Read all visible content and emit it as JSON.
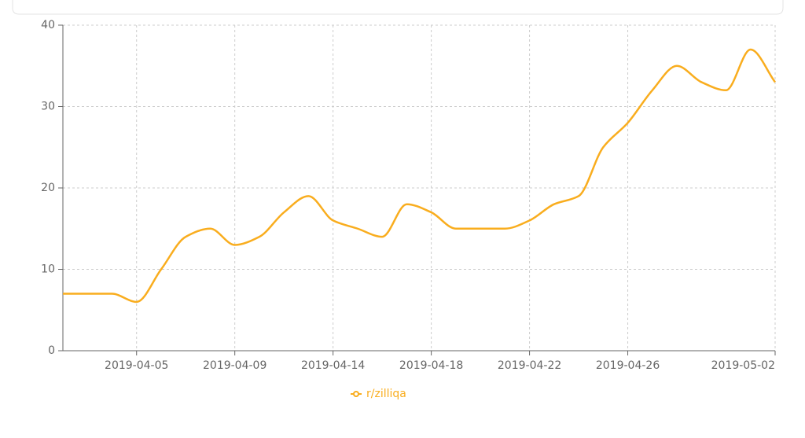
{
  "chart_data": {
    "type": "line",
    "categories": [
      null,
      null,
      null,
      "2019-04-05",
      null,
      null,
      null,
      "2019-04-09",
      null,
      null,
      null,
      "2019-04-14",
      null,
      null,
      null,
      "2019-04-18",
      null,
      null,
      null,
      "2019-04-22",
      null,
      null,
      null,
      "2019-04-26",
      null,
      null,
      null,
      null,
      null,
      "2019-05-02"
    ],
    "series": [
      {
        "name": "r/zilliqa",
        "color": "#f9ad1e",
        "values": [
          7,
          7,
          7,
          6,
          10,
          14,
          15,
          13,
          14,
          17,
          19,
          16,
          15,
          14,
          18,
          17,
          15,
          15,
          15,
          16,
          18,
          19,
          25,
          28,
          32,
          35,
          33,
          32,
          37,
          33
        ]
      }
    ],
    "ylim": [
      0,
      40
    ],
    "yticks": [
      0,
      10,
      20,
      30,
      40
    ],
    "grid": true
  }
}
